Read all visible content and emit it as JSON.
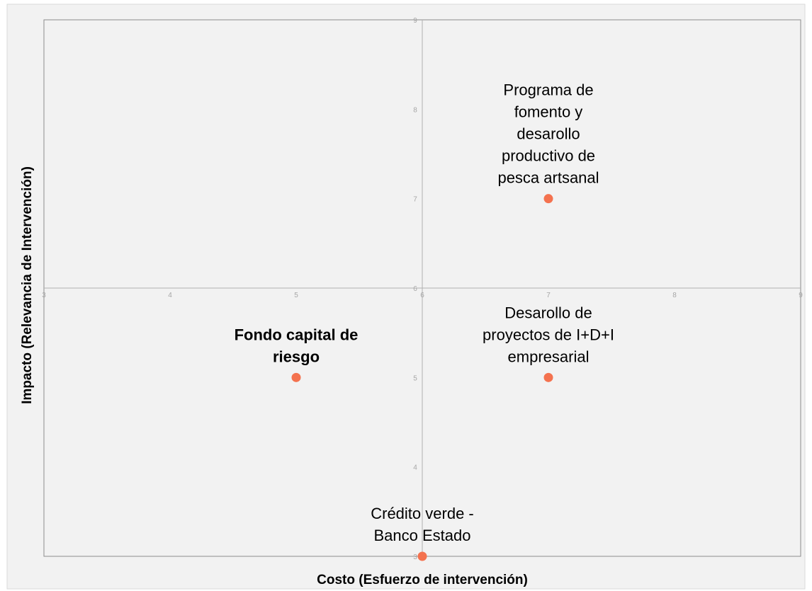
{
  "chart_data": {
    "type": "scatter",
    "xlabel": "Costo (Esfuerzo de intervención)",
    "ylabel": "Impacto (Relevancia de Intervención)",
    "xlim": [
      3,
      9
    ],
    "ylim": [
      3,
      9
    ],
    "x_ticks": [
      "3",
      "4",
      "5",
      "6",
      "7",
      "8",
      "9"
    ],
    "y_ticks": [
      "3",
      "4",
      "5",
      "6",
      "7",
      "8",
      "9"
    ],
    "crosshair": {
      "x": 6,
      "y": 6
    },
    "grid": false,
    "colors": {
      "point": "#f4724f",
      "plot_background": "#f2f2f2",
      "highlight_label": "#f4724f"
    },
    "points": [
      {
        "x": 7,
        "y": 7,
        "label": "Programa de fomento y desarollo productivo de pesca artsanal",
        "lines": [
          "Programa de",
          "fomento y",
          "desarollo",
          "productivo de",
          "pesca artsanal"
        ],
        "highlight": false
      },
      {
        "x": 7,
        "y": 5,
        "label": "Desarollo de proyectos de I+D+I empresarial",
        "lines": [
          "Desarollo de",
          "proyectos de I+D+I",
          "empresarial"
        ],
        "highlight": false
      },
      {
        "x": 5,
        "y": 5,
        "label": "Fondo capital de riesgo",
        "lines": [
          "Fondo capital de",
          "riesgo"
        ],
        "highlight": true
      },
      {
        "x": 6,
        "y": 3,
        "label": "Crédito verde - Banco Estado",
        "lines": [
          "Crédito verde -",
          "Banco Estado"
        ],
        "highlight": false
      }
    ]
  }
}
